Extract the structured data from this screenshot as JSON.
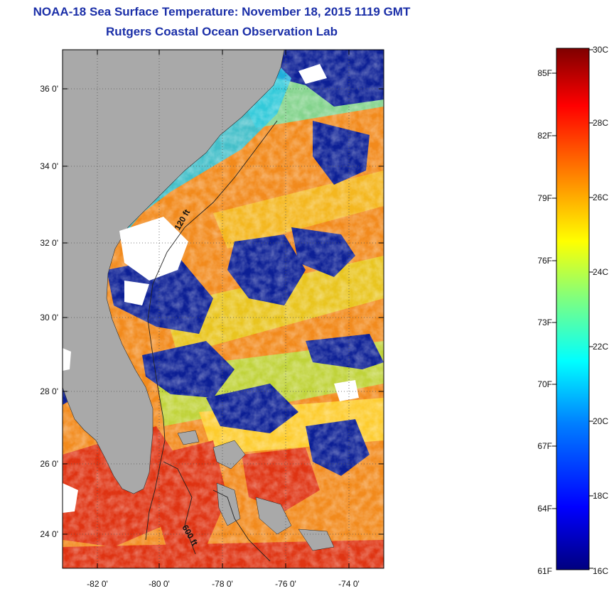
{
  "title": {
    "line1": "NOAA-18 Sea Surface Temperature:  November 18, 2015 1119 GMT",
    "line2": "Rutgers Coastal Ocean Observation Lab"
  },
  "map": {
    "lat_ticks": [
      "36 0'",
      "34 0'",
      "32 0'",
      "30 0'",
      "28 0'",
      "26 0'",
      "24 0'"
    ],
    "lon_ticks": [
      "-82 0'",
      "-80 0'",
      "-78 0'",
      "-76 0'",
      "-74 0'"
    ],
    "contour_labels": [
      "120 ft",
      "600 ft"
    ],
    "colors": {
      "land": "#a9a9a9",
      "cloud": "#ffffff",
      "cold": "#0a1a8c",
      "warm": "#f07818",
      "hot": "#d42010"
    }
  },
  "colorbar": {
    "celsius_labels": [
      "30C",
      "28C",
      "26C",
      "24C",
      "22C",
      "20C",
      "18C",
      "16C"
    ],
    "fahrenheit_labels": [
      "85F",
      "82F",
      "79F",
      "76F",
      "73F",
      "70F",
      "67F",
      "64F",
      "61F"
    ],
    "range_c": [
      16,
      30
    ],
    "range_f": [
      61,
      86
    ],
    "gradient": [
      "#00007f",
      "#0000ff",
      "#007fff",
      "#00ffff",
      "#7fff7f",
      "#ffff00",
      "#ff7f00",
      "#ff0000",
      "#7f0000"
    ]
  }
}
